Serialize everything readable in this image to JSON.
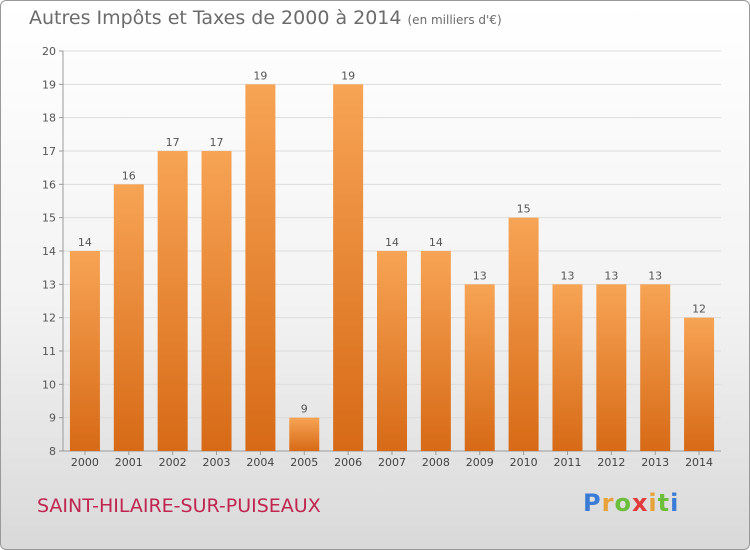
{
  "chart_data": {
    "type": "bar",
    "title": "Autres Impôts et Taxes de 2000 à 2014",
    "subtitle": "(en milliers d'€)",
    "categories": [
      "2000",
      "2001",
      "2002",
      "2003",
      "2004",
      "2005",
      "2006",
      "2007",
      "2008",
      "2009",
      "2010",
      "2011",
      "2012",
      "2013",
      "2014"
    ],
    "values": [
      14,
      16,
      17,
      17,
      19,
      9,
      19,
      14,
      14,
      13,
      15,
      13,
      13,
      13,
      12
    ],
    "ylim": [
      8,
      20
    ],
    "yticks": [
      8,
      9,
      10,
      11,
      12,
      13,
      14,
      15,
      16,
      17,
      18,
      19,
      20
    ],
    "grid": true,
    "bar_color": "#f0913a",
    "legend": "none"
  },
  "footer": {
    "commune": "SAINT-HILAIRE-SUR-PUISEAUX",
    "logo": {
      "letters": [
        "P",
        "r",
        "o",
        "x",
        "i",
        "t",
        "i"
      ],
      "colors": [
        "#3a7bd5",
        "#e8a23a",
        "#6bbf3b",
        "#e23b3b",
        "#e8a23a",
        "#6bbf3b",
        "#3a7bd5"
      ]
    }
  }
}
